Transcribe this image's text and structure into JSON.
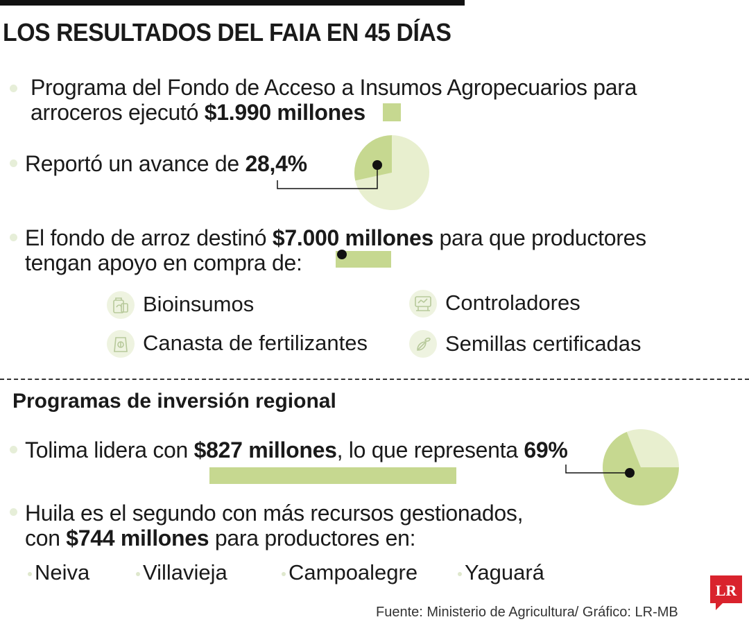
{
  "title": "LOS RESULTADOS DEL FAIA EN 45 DÍAS",
  "items": {
    "fund": {
      "line1": "Programa del Fondo de Acceso a Insumos Agropecuarios para",
      "line2_prefix": "arroceros ejecutó ",
      "amount": "$1.990 millones"
    },
    "progress": {
      "prefix": "Reportó un avance de ",
      "value_label": "28,4%",
      "value": 28.4
    },
    "rice_fund": {
      "line1_prefix": "El fondo de arroz destinó ",
      "amount": "$7.000 millones",
      "line1_suffix": " para que productores",
      "line2": "tengan apoyo en compra de:"
    }
  },
  "supplies": [
    {
      "label": "Bioinsumos",
      "icon": "bioinput-icon"
    },
    {
      "label": "Controladores",
      "icon": "controller-icon"
    },
    {
      "label": "Canasta de fertilizantes",
      "icon": "fertilizer-icon"
    },
    {
      "label": "Semillas certificadas",
      "icon": "seed-icon"
    }
  ],
  "regional": {
    "heading": "Programas de inversión regional",
    "tolima": {
      "prefix": "Tolima lidera con ",
      "amount": "$827 millones",
      "middle": ", lo que representa ",
      "share_label": "69%",
      "share": 69
    },
    "huila": {
      "line1": "Huila es el segundo con más recursos gestionados,",
      "line2_prefix": "con ",
      "amount": "$744 millones",
      "line2_suffix": " para productores en:"
    },
    "towns": [
      "Neiva",
      "Villavieja",
      "Campoalegre",
      "Yaguará"
    ]
  },
  "source": "Fuente: Ministerio de Agricultura/ Gráfico: LR-MB",
  "logo_text": "LR",
  "colors": {
    "accent": "#c6d890",
    "pie_light": "#e8efcf",
    "pie_dark": "#c6d890",
    "logo_red": "#d9232d"
  }
}
